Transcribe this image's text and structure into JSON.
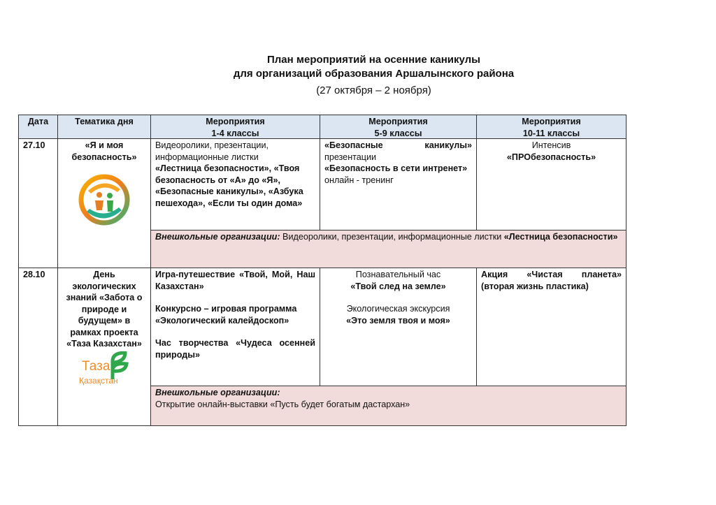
{
  "title": {
    "line1": "План мероприятий на осенние каникулы",
    "line2": "для организаций образования Аршалынского района",
    "line3": "(27 октября – 2 ноября)"
  },
  "headers": {
    "date": "Дата",
    "theme": "Тематика дня",
    "g14": [
      "Мероприятия",
      "1-4 классы"
    ],
    "g59": [
      "Мероприятия",
      "5-9 классы"
    ],
    "g1011": [
      "Мероприятия",
      "10-11 классы"
    ]
  },
  "row1": {
    "date": "27.10",
    "theme": "«Я и моя безопасность»",
    "g14": {
      "p1": "Видеоролики, презентации, информационные листки",
      "p2": "«Лестница безопасности», «Твоя безопасность от «А» до «Я», «Безопасные каникулы», «Азбука пешехода», «Если ты один дома»"
    },
    "g59": {
      "l1": "«Безопасные каникулы»",
      "l2": "презентации",
      "l3b": "«Безопасность в сети интренет»",
      "l3": " онлайн - тренинг"
    },
    "g1011": {
      "l1": "Интенсив",
      "l2": "«ПРОбезопасность»"
    },
    "extra": {
      "label": "Внешкольные организации:",
      "text": " Видеоролики, презентации, информационные листки ",
      "bold": "«Лестница безопасности»"
    }
  },
  "row2": {
    "date": "28.10",
    "theme": "День экологических знаний «Забота о природе и будущем» в рамках проекта «Таза Казахстан»",
    "logo": {
      "line1": "Таза",
      "line2": "Қазақстан"
    },
    "g14": {
      "p1": "Игра-путешествие «Твой, Мой, Наш Казахстан»",
      "p2": "Конкурсно – игровая программа «Экологический калейдоскоп»",
      "p3": "Час творчества «Чудеса осенней природы»"
    },
    "g59": {
      "l1": "Познавательный час",
      "l2": "«Твой след на  земле»",
      "l3": "Экологическая экскурсия",
      "l4": "«Это земля твоя и моя»"
    },
    "g1011": {
      "text": "Акция «Чистая планета» (вторая жизнь пластика)"
    },
    "extra": {
      "label": "Внешкольные организации:",
      "text": "Открытие онлайн-выставки «Пусть будет богатым дастархан»"
    }
  },
  "colors": {
    "header_bg": "#dce6f2",
    "extra_bg": "#f2dcdb"
  }
}
